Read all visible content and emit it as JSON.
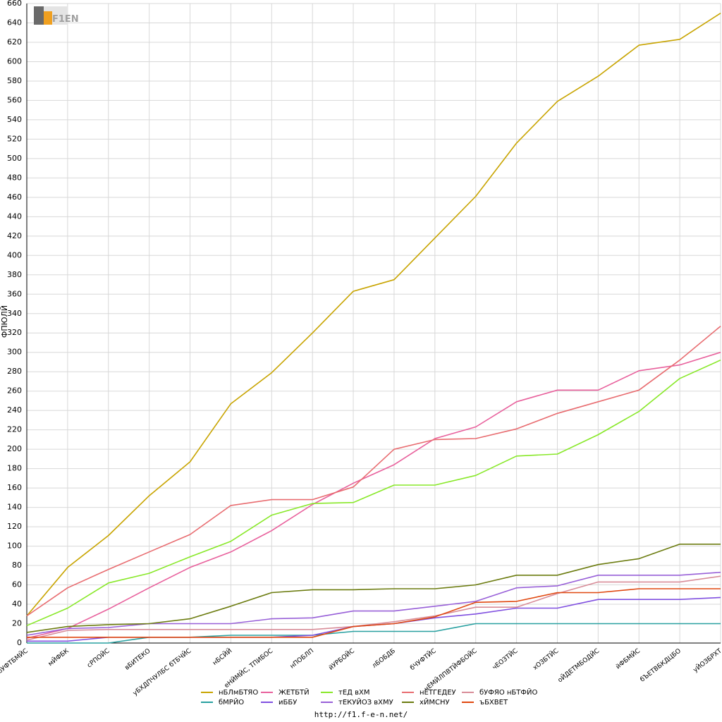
{
  "footer_url": "http://f1.f-e-n.net/",
  "logo_text": "F1EN",
  "chart_data": {
    "type": "line",
    "ylabel": "ФПЮЛЙ",
    "ylim": [
      0,
      660
    ],
    "yticks": [
      0,
      20,
      40,
      60,
      80,
      100,
      120,
      140,
      160,
      180,
      200,
      220,
      240,
      260,
      280,
      300,
      320,
      340,
      360,
      380,
      400,
      420,
      440,
      460,
      480,
      500,
      520,
      540,
      560,
      580,
      600,
      620,
      640,
      660
    ],
    "grid": true,
    "legend_position": "bottom",
    "categories": [
      "бУФТБМЙС",
      "мЙФБК",
      "сРПОЙС",
      "вБИТЕКО",
      "уБХДПЧУЛБС бТБЧЙС",
      "нБСЙЙ",
      "еНЙМЙС, ТПИБОС",
      "нПОБЛП",
      "йУРБОЙС",
      "лБОБДБ",
      "бЧУФТЙС",
      "чЕМЙЛПВТЙФБОЙС",
      "чЕОЗТЙС",
      "хОЗБТЙС",
      "оЙДЕТМБОДЙС",
      "йФБМЙС",
      "бЪЕТВБКДЦБО",
      "уЙОЗБРХТ"
    ],
    "series": [
      {
        "name": "нБЛмБТЯО",
        "color": "#c8a400",
        "values": [
          28,
          78,
          111,
          152,
          187,
          247,
          279,
          320,
          363,
          375,
          418,
          461,
          516,
          559,
          585,
          617,
          623,
          650
        ]
      },
      {
        "name": "ЖЕТБТЙ",
        "color": "#e8609c",
        "values": [
          5,
          15,
          35,
          57,
          78,
          94,
          116,
          143,
          165,
          184,
          211,
          223,
          249,
          261,
          261,
          281,
          287,
          300
        ]
      },
      {
        "name": "тЕД вХМ",
        "color": "#88e828",
        "values": [
          18,
          36,
          62,
          72,
          89,
          105,
          132,
          144,
          145,
          163,
          163,
          173,
          193,
          195,
          215,
          239,
          273,
          292
        ]
      },
      {
        "name": "нЕТГЕДЕУ",
        "color": "#e86c70",
        "values": [
          28,
          57,
          76,
          94,
          112,
          142,
          148,
          148,
          161,
          200,
          210,
          211,
          221,
          237,
          249,
          261,
          292,
          327
        ]
      },
      {
        "name": "бУФЯО нБТФЙО",
        "color": "#d88c98",
        "values": [
          3,
          13,
          14,
          14,
          14,
          14,
          14,
          14,
          17,
          22,
          28,
          37,
          37,
          51,
          63,
          63,
          63,
          69
        ]
      },
      {
        "name": "бМРЙО",
        "color": "#28a0a0",
        "values": [
          0,
          0,
          0,
          6,
          6,
          8,
          8,
          8,
          12,
          12,
          12,
          20,
          20,
          20,
          20,
          20,
          20,
          20
        ]
      },
      {
        "name": "иББУ",
        "color": "#8050e0",
        "values": [
          2,
          2,
          6,
          6,
          6,
          6,
          6,
          8,
          17,
          20,
          26,
          30,
          36,
          36,
          45,
          45,
          45,
          47
        ]
      },
      {
        "name": "тЕКУЙОЗ вХМУ",
        "color": "#9860d8",
        "values": [
          8,
          15,
          16,
          20,
          20,
          20,
          25,
          26,
          33,
          33,
          38,
          43,
          57,
          59,
          70,
          70,
          70,
          73
        ]
      },
      {
        "name": "хЙМСНУ",
        "color": "#6c7c10",
        "values": [
          11,
          17,
          19,
          20,
          25,
          38,
          52,
          55,
          55,
          56,
          56,
          60,
          70,
          70,
          81,
          87,
          102,
          102
        ]
      },
      {
        "name": "ъБХВЕТ",
        "color": "#e04810",
        "values": [
          6,
          6,
          6,
          6,
          6,
          6,
          6,
          6,
          17,
          20,
          27,
          42,
          43,
          52,
          52,
          56,
          56,
          56
        ]
      }
    ]
  }
}
